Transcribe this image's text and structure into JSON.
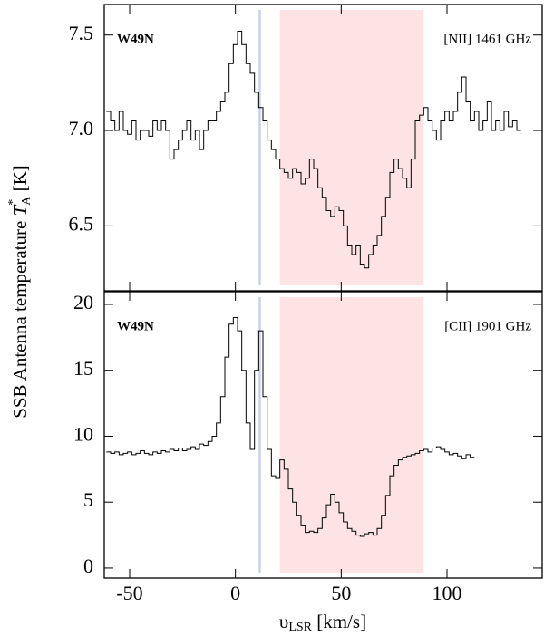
{
  "ylabel": {
    "text": "SSB Antenna temperature ",
    "symbol": "T",
    "sup": "*",
    "sub": "A",
    "unit": " [K]"
  },
  "xlabel": {
    "symbol": "υ",
    "sub": "LSR",
    "unit": " [km/s]"
  },
  "chart_data": [
    {
      "type": "line",
      "drawstyle": "steps-mid",
      "annotations": [
        {
          "text": "W49N"
        },
        {
          "text": "[NII] 1461 GHz"
        }
      ],
      "spans": [
        {
          "range": [
            11,
            12
          ],
          "color": "#c8cbf2"
        },
        {
          "range": [
            21,
            89
          ],
          "color": "#fde3e3"
        }
      ],
      "xlim": [
        -62,
        145
      ],
      "xticks": [
        -50,
        0,
        50,
        100
      ],
      "ylim": [
        6.16,
        7.66
      ],
      "yticks": [
        6.5,
        {
          "value": 7,
          "label": "7.0"
        },
        7.5
      ],
      "x": [
        -60,
        -58,
        -56,
        -54,
        -52,
        -50,
        -48,
        -46,
        -44,
        -42,
        -40,
        -38,
        -36,
        -34,
        -32,
        -30,
        -28,
        -26,
        -24,
        -22,
        -20,
        -18,
        -16,
        -14,
        -12,
        -10,
        -8,
        -6,
        -4,
        -2,
        0,
        2,
        4,
        6,
        8,
        10,
        12,
        14,
        16,
        18,
        20,
        22,
        24,
        26,
        28,
        30,
        32,
        34,
        36,
        38,
        40,
        42,
        44,
        46,
        48,
        50,
        52,
        54,
        56,
        58,
        60,
        62,
        64,
        66,
        68,
        70,
        72,
        74,
        76,
        78,
        80,
        82,
        84,
        86,
        88,
        90,
        92,
        94,
        96,
        98,
        100,
        102,
        104,
        106,
        108,
        110,
        112,
        114,
        116,
        118,
        120,
        122,
        124,
        126,
        128,
        130,
        132,
        134
      ],
      "series": [
        {
          "color": "#000000",
          "values": [
            7.1,
            7.05,
            7.0,
            7.1,
            7.0,
            6.98,
            7.05,
            6.95,
            7.0,
            7.0,
            6.97,
            7.05,
            7.0,
            7.05,
            7.0,
            6.85,
            6.9,
            6.95,
            7.0,
            7.05,
            6.95,
            7.0,
            6.9,
            7.0,
            7.05,
            7.05,
            7.1,
            7.15,
            7.2,
            7.35,
            7.45,
            7.52,
            7.45,
            7.35,
            7.3,
            7.2,
            7.12,
            7.05,
            6.95,
            6.9,
            6.85,
            6.8,
            6.78,
            6.75,
            6.8,
            6.78,
            6.72,
            6.75,
            6.85,
            6.8,
            6.7,
            6.65,
            6.58,
            6.55,
            6.6,
            6.58,
            6.5,
            6.4,
            6.35,
            6.4,
            6.3,
            6.28,
            6.35,
            6.4,
            6.45,
            6.55,
            6.65,
            6.78,
            6.85,
            6.8,
            6.75,
            6.7,
            6.85,
            7.05,
            7.08,
            7.12,
            7.05,
            7.0,
            6.95,
            7.05,
            7.1,
            7.05,
            7.1,
            7.2,
            7.28,
            7.15,
            7.05,
            7.1,
            7.0,
            7.05,
            7.15,
            7.0,
            7.05,
            7.0,
            7.1,
            7.02,
            7.05,
            7.0
          ]
        }
      ]
    },
    {
      "type": "line",
      "drawstyle": "steps-mid",
      "annotations": [
        {
          "text": "W49N"
        },
        {
          "text": "[CII] 1901 GHz"
        }
      ],
      "spans": [
        {
          "range": [
            11,
            12
          ],
          "color": "#c8cbf2"
        },
        {
          "range": [
            21,
            89
          ],
          "color": "#fde3e3"
        }
      ],
      "xlim": [
        -62,
        145
      ],
      "xticks": [
        -50,
        0,
        50,
        100
      ],
      "ylim": [
        -0.76,
        20.96
      ],
      "yticks": [
        0,
        5,
        10,
        15,
        20
      ],
      "x": [
        -60,
        -58,
        -56,
        -54,
        -52,
        -50,
        -48,
        -46,
        -44,
        -42,
        -40,
        -38,
        -36,
        -34,
        -32,
        -30,
        -28,
        -26,
        -24,
        -22,
        -20,
        -18,
        -16,
        -14,
        -12,
        -10,
        -8,
        -6,
        -4,
        -2,
        0,
        2,
        4,
        6,
        8,
        10,
        12,
        14,
        16,
        18,
        20,
        22,
        24,
        26,
        28,
        30,
        32,
        34,
        36,
        38,
        40,
        42,
        44,
        46,
        48,
        50,
        52,
        54,
        56,
        58,
        60,
        62,
        64,
        66,
        68,
        70,
        72,
        74,
        76,
        78,
        80,
        82,
        84,
        86,
        88,
        90,
        92,
        94,
        96,
        98,
        100,
        102,
        104,
        106,
        108,
        110,
        112
      ],
      "series": [
        {
          "color": "#000000",
          "values": [
            8.8,
            8.7,
            8.8,
            8.6,
            8.7,
            8.8,
            8.6,
            8.7,
            8.9,
            8.7,
            8.6,
            8.8,
            8.7,
            8.9,
            8.8,
            9.0,
            8.9,
            9.1,
            8.9,
            9.0,
            9.2,
            9.0,
            9.4,
            9.3,
            9.6,
            10.0,
            11.0,
            13.0,
            16.0,
            18.5,
            19.0,
            18.0,
            15.0,
            11.0,
            9.0,
            15.0,
            18.0,
            13.0,
            9.0,
            7.0,
            6.8,
            8.2,
            7.5,
            6.0,
            5.0,
            4.0,
            3.2,
            2.7,
            2.8,
            2.7,
            3.0,
            3.8,
            4.8,
            5.6,
            5.0,
            4.2,
            3.5,
            3.0,
            2.8,
            2.5,
            2.4,
            2.6,
            2.7,
            2.5,
            3.0,
            4.0,
            5.5,
            7.0,
            7.8,
            8.2,
            8.4,
            8.5,
            8.6,
            8.7,
            8.9,
            9.0,
            8.8,
            9.1,
            9.2,
            9.0,
            8.8,
            8.6,
            8.7,
            8.5,
            8.3,
            8.6,
            8.4
          ]
        }
      ]
    }
  ]
}
